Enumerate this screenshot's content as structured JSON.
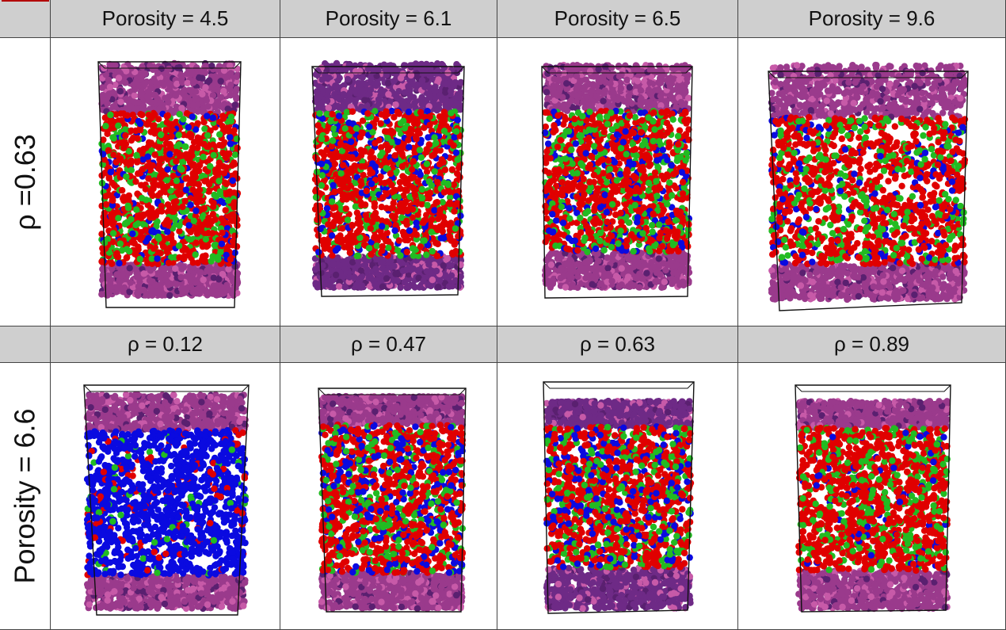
{
  "top_headers": [
    "Porosity = 4.5",
    "Porosity = 6.1",
    "Porosity = 6.5",
    "Porosity = 9.6"
  ],
  "bottom_headers": [
    "ρ = 0.12",
    "ρ = 0.47",
    "ρ = 0.63",
    "ρ = 0.89"
  ],
  "row_labels": [
    "ρ =0.63",
    "Porosity = 6.6"
  ],
  "colors": {
    "header_bg": "#cfcfcf",
    "purple_layer": "#9a3a8c",
    "dark_purple_layer": "#6e2a86",
    "red_particle": "#e00000",
    "green_particle": "#22bb22",
    "blue_particle": "#0a0ae0"
  },
  "panels": [
    {
      "id": "p1",
      "layer": "purple",
      "blue_fraction": 0.12
    },
    {
      "id": "p2",
      "layer": "dark_purple",
      "blue_fraction": 0.15
    },
    {
      "id": "p3",
      "layer": "purple",
      "blue_fraction": 0.15
    },
    {
      "id": "p4",
      "layer": "purple",
      "blue_fraction": 0.12
    },
    {
      "id": "p5",
      "layer": "purple",
      "blue_fraction": 0.85
    },
    {
      "id": "p6",
      "layer": "purple",
      "blue_fraction": 0.2
    },
    {
      "id": "p7",
      "layer": "dark_purple",
      "blue_fraction": 0.18
    },
    {
      "id": "p8",
      "layer": "purple",
      "blue_fraction": 0.05
    }
  ]
}
